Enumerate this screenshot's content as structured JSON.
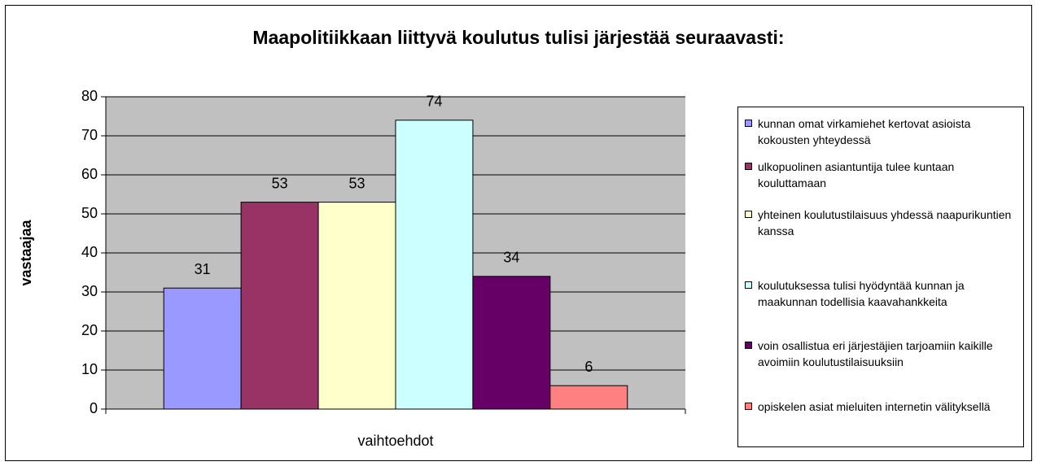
{
  "chart_data": {
    "type": "bar",
    "title": "Maapolitiikkaan liittyvä koulutus tulisi järjestää seuraavasti:",
    "y_label": "vastaajaa",
    "x_label": "vaihtoehdot",
    "categories": [
      "vaihtoehdot"
    ],
    "series": [
      {
        "name": "kunnan omat virkamiehet kertovat asioista kokousten yhteydessä",
        "color": "#9999ff",
        "values": [
          31
        ]
      },
      {
        "name": "ulkopuolinen asiantuntija tulee kuntaan kouluttamaan",
        "color": "#993366",
        "values": [
          53
        ]
      },
      {
        "name": "yhteinen koulutustilaisuus yhdessä naapurikuntien kanssa",
        "color": "#ffffcc",
        "values": [
          53
        ]
      },
      {
        "name": "koulutuksessa tulisi hyödyntää kunnan ja maakunnan todellisia kaavahankkeita",
        "color": "#ccffff",
        "values": [
          74
        ]
      },
      {
        "name": "voin osallistua eri järjestäjien tarjoamiin kaikille avoimiin koulutustilaisuuksiin",
        "color": "#660066",
        "values": [
          34
        ]
      },
      {
        "name": "opiskelen asiat mieluiten internetin välityksellä",
        "color": "#ff8080",
        "values": [
          6
        ]
      }
    ],
    "ylim": [
      0,
      80
    ],
    "yticks": [
      0,
      10,
      20,
      30,
      40,
      50,
      60,
      70,
      80
    ],
    "grid": true,
    "legend": "right"
  }
}
